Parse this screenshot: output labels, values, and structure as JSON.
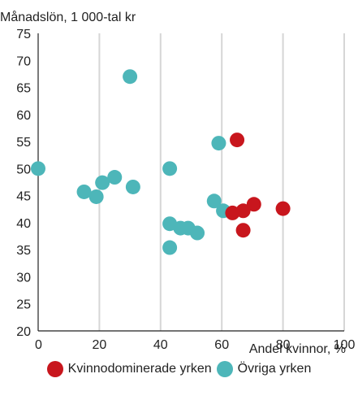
{
  "chart_data": {
    "type": "scatter",
    "title": "",
    "ylabel": "Månadslön, 1 000-tal kr",
    "xlabel": "Andel kvinnor, %",
    "xlim": [
      0,
      100
    ],
    "ylim": [
      20,
      75
    ],
    "x_ticks": [
      "0",
      "20",
      "40",
      "60",
      "80",
      "100"
    ],
    "y_ticks": [
      "20",
      "25",
      "30",
      "35",
      "40",
      "45",
      "50",
      "55",
      "60",
      "65",
      "70",
      "75"
    ],
    "grid": "vertical",
    "legend": "bottom",
    "series": [
      {
        "name": "Kvinnodominerade yrken",
        "color": "#c8161d",
        "points": [
          {
            "x": 65,
            "y": 55.3
          },
          {
            "x": 63.5,
            "y": 41.8
          },
          {
            "x": 67,
            "y": 42.2
          },
          {
            "x": 70.5,
            "y": 43.4
          },
          {
            "x": 67,
            "y": 38.6
          },
          {
            "x": 80,
            "y": 42.6
          }
        ]
      },
      {
        "name": "Övriga yrken",
        "color": "#4db6b9",
        "points": [
          {
            "x": 0,
            "y": 50
          },
          {
            "x": 15,
            "y": 45.7
          },
          {
            "x": 19,
            "y": 44.8
          },
          {
            "x": 21,
            "y": 47.4
          },
          {
            "x": 25,
            "y": 48.4
          },
          {
            "x": 30,
            "y": 67
          },
          {
            "x": 31,
            "y": 46.6
          },
          {
            "x": 43,
            "y": 50
          },
          {
            "x": 43,
            "y": 39.8
          },
          {
            "x": 43,
            "y": 35.4
          },
          {
            "x": 46.5,
            "y": 39
          },
          {
            "x": 49,
            "y": 39
          },
          {
            "x": 52,
            "y": 38.1
          },
          {
            "x": 57.5,
            "y": 44
          },
          {
            "x": 59,
            "y": 54.7
          },
          {
            "x": 60.5,
            "y": 42.2
          }
        ]
      }
    ]
  }
}
